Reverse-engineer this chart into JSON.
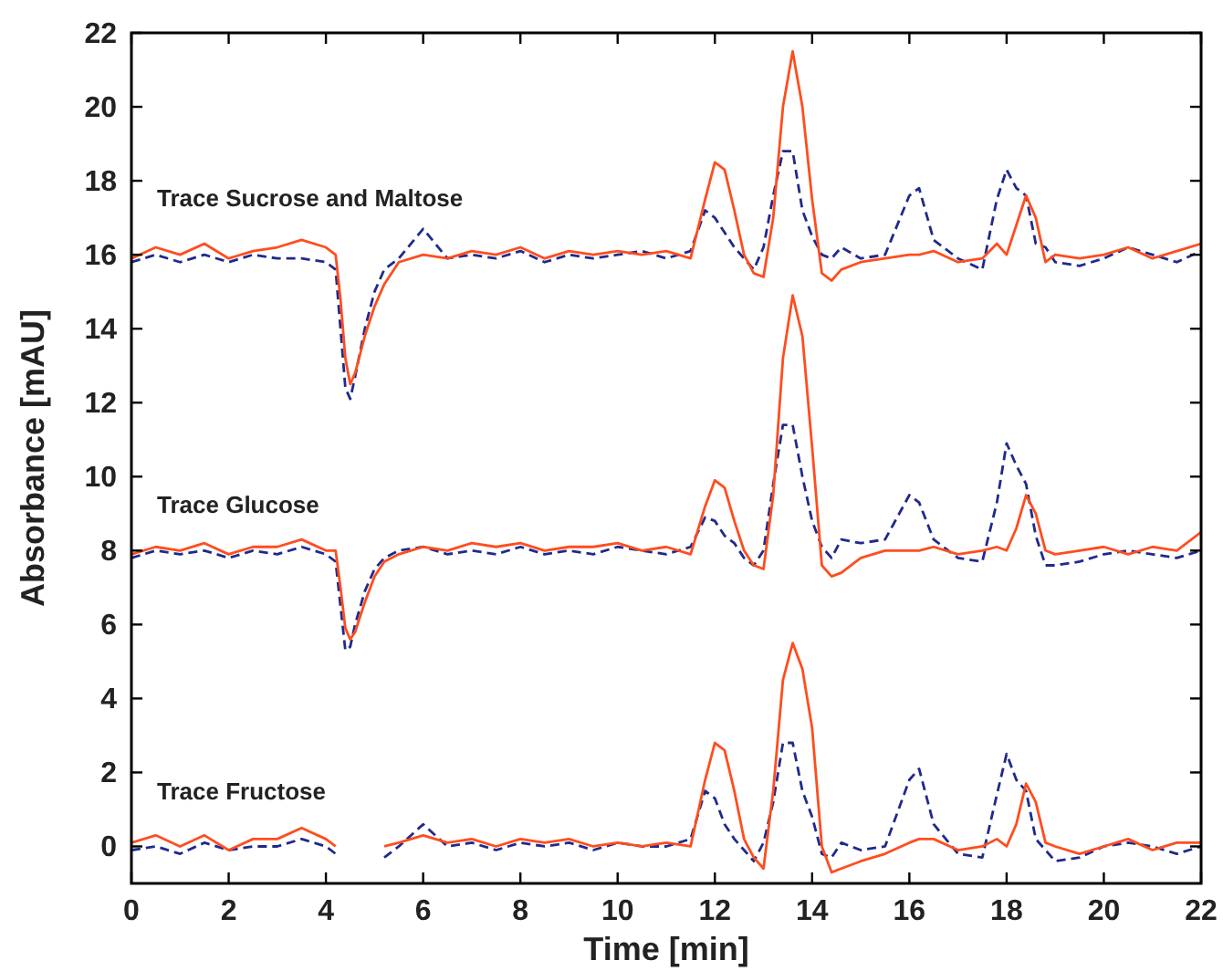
{
  "chart_data": {
    "type": "line",
    "xlabel": "Time [min]",
    "ylabel": "Absorbance [mAU]",
    "xlim": [
      0,
      22
    ],
    "xticks": [
      0,
      2,
      4,
      6,
      8,
      10,
      12,
      14,
      16,
      18,
      20,
      22
    ],
    "ylim": [
      -1,
      22
    ],
    "yticks": [
      0,
      2,
      4,
      6,
      8,
      10,
      12,
      14,
      16,
      18,
      20,
      22
    ],
    "grid": false,
    "marker": "none",
    "x": [
      0,
      0.5,
      1,
      1.5,
      2,
      2.5,
      3,
      3.5,
      4,
      4.2,
      4.3,
      4.4,
      4.5,
      4.6,
      4.8,
      5,
      5.2,
      5.5,
      6,
      6.5,
      7,
      7.5,
      8,
      8.5,
      9,
      9.5,
      10,
      10.5,
      11,
      11.5,
      11.8,
      12,
      12.2,
      12.4,
      12.6,
      12.8,
      13,
      13.2,
      13.4,
      13.6,
      13.8,
      14,
      14.2,
      14.4,
      14.6,
      15,
      15.5,
      16,
      16.2,
      16.5,
      17,
      17.5,
      17.8,
      18,
      18.2,
      18.4,
      18.6,
      18.8,
      19,
      19.5,
      20,
      20.5,
      21,
      21.5,
      22
    ],
    "series": [
      {
        "color": "#1f2a8c",
        "line_style": "dashed",
        "values": [
          15.8,
          16.0,
          15.8,
          16.0,
          15.8,
          16.0,
          15.9,
          15.9,
          15.8,
          15.6,
          14.0,
          12.4,
          12.1,
          12.7,
          14.0,
          15.0,
          15.6,
          15.9,
          16.7,
          15.9,
          16.0,
          15.9,
          16.1,
          15.8,
          16.0,
          15.9,
          16.0,
          16.1,
          15.9,
          16.1,
          17.2,
          17.0,
          16.6,
          16.2,
          15.9,
          15.6,
          16.2,
          17.6,
          18.8,
          18.8,
          17.2,
          16.5,
          16.0,
          15.9,
          16.2,
          15.9,
          16.0,
          17.6,
          17.8,
          16.4,
          15.9,
          15.6,
          17.5,
          18.3,
          17.8,
          17.6,
          16.3,
          16.2,
          15.8,
          15.7,
          15.9,
          16.2,
          16.0,
          15.8,
          16.1
        ]
      },
      {
        "color": "#ff4d1f",
        "line_style": "solid",
        "values": [
          15.9,
          16.2,
          16.0,
          16.3,
          15.9,
          16.1,
          16.2,
          16.4,
          16.2,
          16.0,
          14.8,
          13.2,
          12.5,
          12.8,
          13.8,
          14.6,
          15.2,
          15.8,
          16.0,
          15.9,
          16.1,
          16.0,
          16.2,
          15.9,
          16.1,
          16.0,
          16.1,
          16.0,
          16.1,
          15.9,
          17.5,
          18.5,
          18.3,
          17.2,
          16.0,
          15.5,
          15.4,
          17.0,
          20.0,
          21.5,
          20.0,
          17.5,
          15.5,
          15.3,
          15.6,
          15.8,
          15.9,
          16.0,
          16.0,
          16.1,
          15.8,
          15.9,
          16.3,
          16.0,
          16.8,
          17.6,
          17.0,
          15.8,
          16.0,
          15.9,
          16.0,
          16.2,
          15.9,
          16.1,
          16.3
        ]
      },
      {
        "color": "#1f2a8c",
        "line_style": "dashed",
        "values": [
          7.8,
          8.0,
          7.9,
          8.0,
          7.8,
          8.0,
          7.9,
          8.1,
          7.9,
          7.7,
          6.5,
          5.3,
          5.4,
          6.0,
          6.9,
          7.5,
          7.8,
          8.0,
          8.1,
          7.9,
          8.0,
          7.9,
          8.1,
          7.9,
          8.0,
          7.9,
          8.1,
          8.0,
          7.9,
          8.1,
          8.9,
          8.8,
          8.4,
          8.2,
          7.8,
          7.6,
          8.0,
          9.8,
          11.4,
          11.4,
          10.0,
          8.8,
          8.1,
          7.8,
          8.3,
          8.2,
          8.3,
          9.5,
          9.3,
          8.3,
          7.8,
          7.7,
          9.3,
          10.9,
          10.3,
          9.8,
          8.4,
          7.6,
          7.6,
          7.7,
          7.9,
          8.0,
          7.9,
          7.8,
          8.0
        ]
      },
      {
        "color": "#ff4d1f",
        "line_style": "solid",
        "values": [
          7.9,
          8.1,
          8.0,
          8.2,
          7.9,
          8.1,
          8.1,
          8.3,
          8.0,
          8.0,
          7.0,
          5.9,
          5.6,
          5.8,
          6.6,
          7.3,
          7.7,
          7.9,
          8.1,
          8.0,
          8.2,
          8.1,
          8.2,
          8.0,
          8.1,
          8.1,
          8.2,
          8.0,
          8.1,
          7.9,
          9.2,
          9.9,
          9.7,
          8.8,
          8.0,
          7.6,
          7.5,
          9.5,
          13.2,
          14.9,
          13.8,
          10.8,
          7.6,
          7.3,
          7.4,
          7.8,
          8.0,
          8.0,
          8.0,
          8.1,
          7.9,
          8.0,
          8.1,
          8.0,
          8.6,
          9.5,
          9.0,
          8.0,
          7.9,
          8.0,
          8.1,
          7.9,
          8.1,
          8.0,
          8.5
        ]
      },
      {
        "color": "#1f2a8c",
        "line_style": "dashed",
        "values": [
          -0.1,
          0.0,
          -0.2,
          0.1,
          -0.1,
          0.0,
          0.0,
          0.2,
          0.0,
          -0.2,
          null,
          null,
          null,
          null,
          null,
          null,
          -0.3,
          0.0,
          0.6,
          0.0,
          0.1,
          -0.1,
          0.1,
          0.0,
          0.1,
          -0.1,
          0.1,
          0.0,
          0.0,
          0.2,
          1.5,
          1.3,
          0.6,
          0.2,
          -0.1,
          -0.4,
          0.1,
          1.2,
          2.8,
          2.8,
          1.5,
          0.8,
          -0.2,
          -0.3,
          0.1,
          -0.1,
          0.0,
          1.8,
          2.1,
          0.6,
          -0.2,
          -0.3,
          1.4,
          2.5,
          1.8,
          1.5,
          0.2,
          -0.1,
          -0.4,
          -0.3,
          0.0,
          0.1,
          0.0,
          -0.2,
          0.0
        ]
      },
      {
        "color": "#ff4d1f",
        "line_style": "solid",
        "values": [
          0.1,
          0.3,
          0.0,
          0.3,
          -0.1,
          0.2,
          0.2,
          0.5,
          0.2,
          0.0,
          null,
          null,
          null,
          null,
          null,
          null,
          0.0,
          0.1,
          0.3,
          0.1,
          0.2,
          0.0,
          0.2,
          0.1,
          0.2,
          0.0,
          0.1,
          0.0,
          0.1,
          0.0,
          1.8,
          2.8,
          2.6,
          1.5,
          0.2,
          -0.3,
          -0.6,
          1.5,
          4.5,
          5.5,
          4.8,
          3.2,
          0.0,
          -0.7,
          -0.6,
          -0.4,
          -0.2,
          0.1,
          0.2,
          0.2,
          -0.1,
          0.0,
          0.2,
          0.0,
          0.6,
          1.7,
          1.2,
          0.1,
          0.0,
          -0.2,
          0.0,
          0.2,
          -0.1,
          0.1,
          0.1
        ]
      }
    ],
    "annotations": [
      "Trace Sucrose and Maltose",
      "Trace Glucose",
      "Trace Fructose"
    ]
  }
}
